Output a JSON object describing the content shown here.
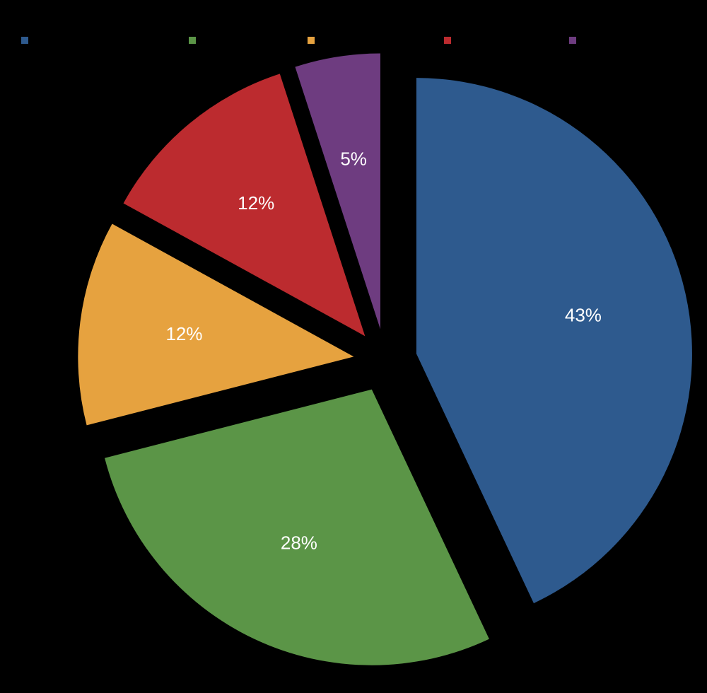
{
  "chart_data": {
    "type": "pie",
    "title": "",
    "legend": {
      "placement": "top",
      "entries": [
        {
          "name": "",
          "color": "#2E5A8E"
        },
        {
          "name": "",
          "color": "#5B9547"
        },
        {
          "name": "",
          "color": "#E6A23F"
        },
        {
          "name": "",
          "color": "#BC2B2F"
        },
        {
          "name": "",
          "color": "#6E3C80"
        }
      ]
    },
    "slices": [
      {
        "value": 43,
        "label": "43%",
        "color": "#2E5A8E",
        "exploded": true
      },
      {
        "value": 28,
        "label": "28%",
        "color": "#5B9547",
        "exploded": true
      },
      {
        "value": 12,
        "label": "12%",
        "color": "#E6A23F",
        "exploded": true
      },
      {
        "value": 12,
        "label": "12%",
        "color": "#BC2B2F",
        "exploded": true
      },
      {
        "value": 5,
        "label": "5%",
        "color": "#6E3C80",
        "exploded": true
      }
    ],
    "start_angle_deg": 0,
    "direction": "clockwise"
  }
}
